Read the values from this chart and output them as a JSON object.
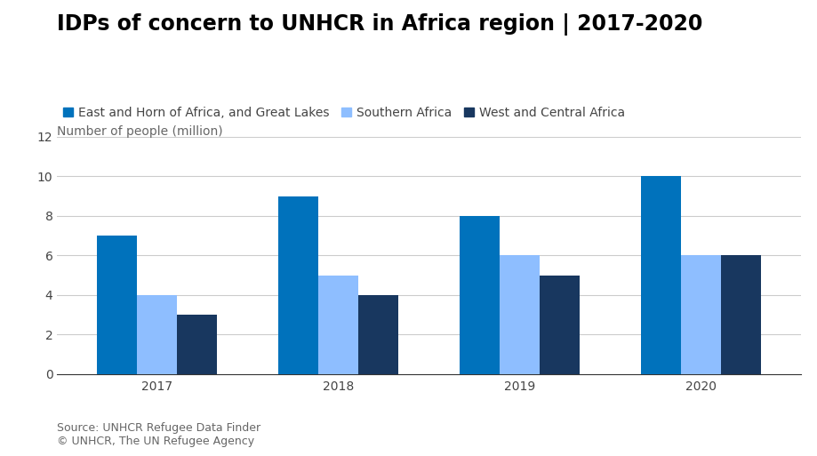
{
  "title": "IDPs of concern to UNHCR in Africa region | 2017-2020",
  "ylabel": "Number of people (million)",
  "years": [
    "2017",
    "2018",
    "2019",
    "2020"
  ],
  "series": [
    {
      "label": "East and Horn of Africa, and Great Lakes",
      "color": "#0072BC",
      "values": [
        7,
        9,
        8,
        10
      ]
    },
    {
      "label": "Southern Africa",
      "color": "#8EBEFF",
      "values": [
        4,
        5,
        6,
        6
      ]
    },
    {
      "label": "West and Central Africa",
      "color": "#18375F",
      "values": [
        3,
        4,
        5,
        6
      ]
    }
  ],
  "ylim": [
    0,
    12
  ],
  "yticks": [
    0,
    2,
    4,
    6,
    8,
    10,
    12
  ],
  "source_text": "Source: UNHCR Refugee Data Finder\n© UNHCR, The UN Refugee Agency",
  "title_fontsize": 17,
  "legend_fontsize": 10,
  "ylabel_fontsize": 10,
  "tick_fontsize": 10,
  "source_fontsize": 9,
  "bar_width": 0.22,
  "background_color": "#ffffff",
  "grid_color": "#cccccc",
  "title_color": "#000000",
  "axis_text_color": "#666666"
}
